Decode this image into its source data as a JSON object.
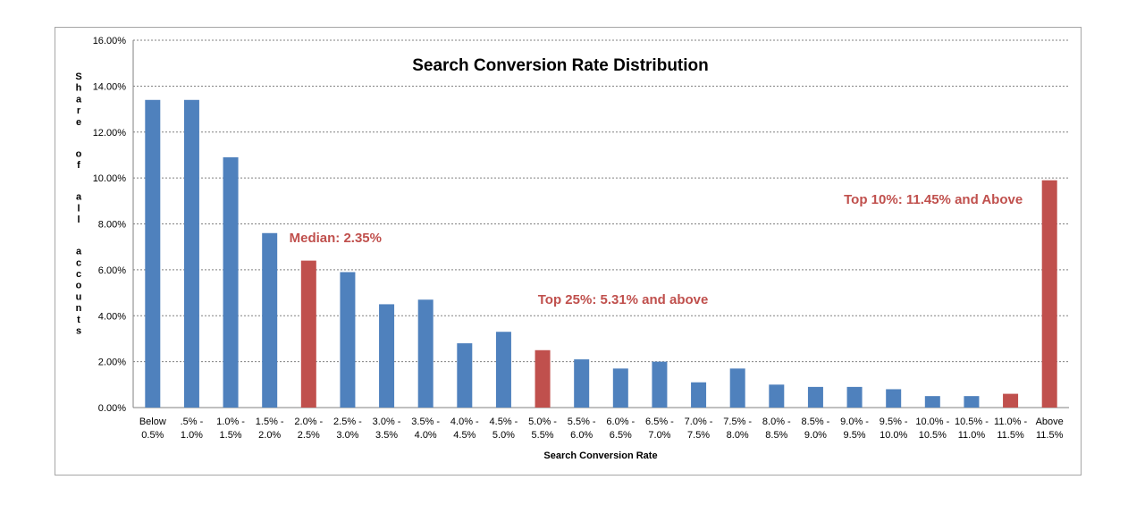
{
  "chart_data": {
    "type": "bar",
    "title": "Search Conversion Rate Distribution",
    "xlabel": "Search Conversion Rate",
    "ylabel": "Share of all accounts",
    "ylim": [
      0,
      0.16
    ],
    "ytick_labels": [
      "0.00%",
      "2.00%",
      "4.00%",
      "6.00%",
      "8.00%",
      "10.00%",
      "12.00%",
      "14.00%",
      "16.00%"
    ],
    "grid": true,
    "categories": [
      [
        "Below",
        "0.5%"
      ],
      [
        ".5% -",
        "1.0%"
      ],
      [
        "1.0% -",
        "1.5%"
      ],
      [
        "1.5% -",
        "2.0%"
      ],
      [
        "2.0% -",
        "2.5%"
      ],
      [
        "2.5% -",
        "3.0%"
      ],
      [
        "3.0% -",
        "3.5%"
      ],
      [
        "3.5% -",
        "4.0%"
      ],
      [
        "4.0% -",
        "4.5%"
      ],
      [
        "4.5% -",
        "5.0%"
      ],
      [
        "5.0% -",
        "5.5%"
      ],
      [
        "5.5% -",
        "6.0%"
      ],
      [
        "6.0% -",
        "6.5%"
      ],
      [
        "6.5% -",
        "7.0%"
      ],
      [
        "7.0% -",
        "7.5%"
      ],
      [
        "7.5% -",
        "8.0%"
      ],
      [
        "8.0% -",
        "8.5%"
      ],
      [
        "8.5% -",
        "9.0%"
      ],
      [
        "9.0% -",
        "9.5%"
      ],
      [
        "9.5% -",
        "10.0%"
      ],
      [
        "10.0% -",
        "10.5%"
      ],
      [
        "10.5% -",
        "11.0%"
      ],
      [
        "11.0% -",
        "11.5%"
      ],
      [
        "Above",
        "11.5%"
      ]
    ],
    "values": [
      0.134,
      0.134,
      0.109,
      0.076,
      0.064,
      0.059,
      0.045,
      0.047,
      0.028,
      0.033,
      0.025,
      0.021,
      0.017,
      0.02,
      0.011,
      0.017,
      0.01,
      0.009,
      0.009,
      0.008,
      0.005,
      0.005,
      0.006,
      0.099
    ],
    "highlighted": [
      4,
      10,
      22,
      23
    ],
    "colors": {
      "bar": "#4f81bd",
      "highlight": "#c0504d",
      "grid": "#808080",
      "annotation": "#c0504d"
    },
    "annotations": [
      {
        "text": "Median: 2.35%",
        "category_index": 4
      },
      {
        "text": "Top 25%: 5.31% and above",
        "category_index": 10
      },
      {
        "text": "Top 10%: 11.45% and Above",
        "category_index": 23
      }
    ]
  }
}
